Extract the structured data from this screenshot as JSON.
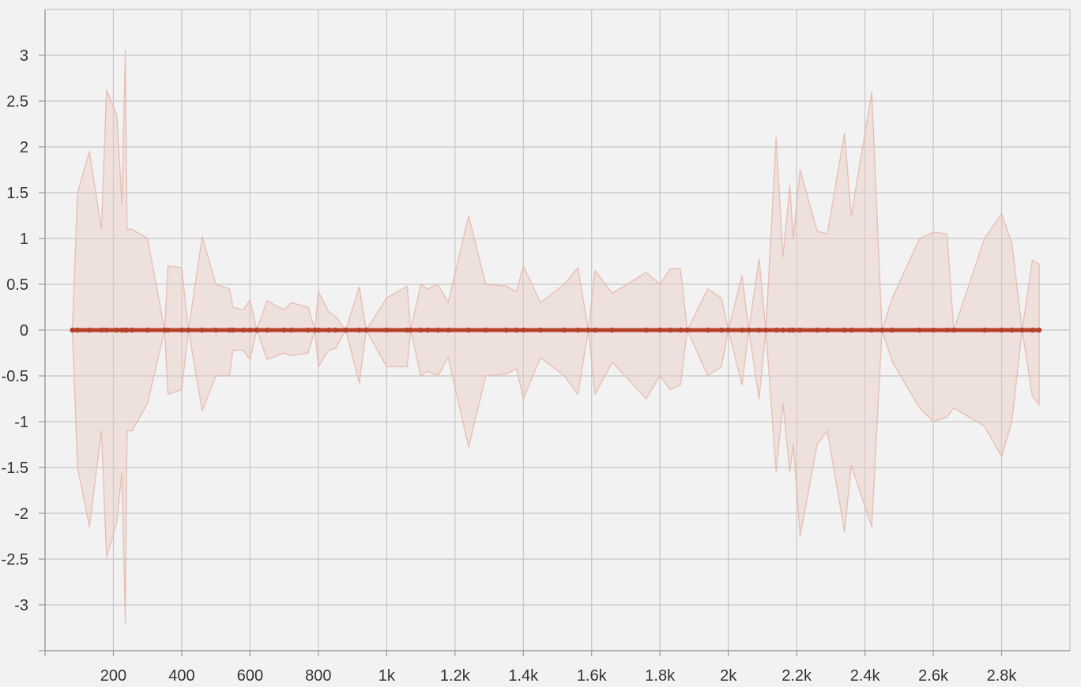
{
  "chart_data": {
    "type": "area",
    "title": "",
    "xlabel": "",
    "ylabel": "",
    "xlim": [
      0,
      3000
    ],
    "ylim": [
      -3.5,
      3.5
    ],
    "grid": true,
    "legend": "none",
    "x_ticks": [
      {
        "value": 200,
        "label": "200"
      },
      {
        "value": 400,
        "label": "400"
      },
      {
        "value": 600,
        "label": "600"
      },
      {
        "value": 800,
        "label": "800"
      },
      {
        "value": 1000,
        "label": "1k"
      },
      {
        "value": 1200,
        "label": "1.2k"
      },
      {
        "value": 1400,
        "label": "1.4k"
      },
      {
        "value": 1600,
        "label": "1.6k"
      },
      {
        "value": 1800,
        "label": "1.8k"
      },
      {
        "value": 2000,
        "label": "2k"
      },
      {
        "value": 2200,
        "label": "2.2k"
      },
      {
        "value": 2400,
        "label": "2.4k"
      },
      {
        "value": 2600,
        "label": "2.6k"
      },
      {
        "value": 2800,
        "label": "2.8k"
      }
    ],
    "y_ticks": [
      {
        "value": 3,
        "label": "3"
      },
      {
        "value": 2.5,
        "label": "2.5"
      },
      {
        "value": 2,
        "label": "2"
      },
      {
        "value": 1.5,
        "label": "1.5"
      },
      {
        "value": 1,
        "label": "1"
      },
      {
        "value": 0.5,
        "label": "0.5"
      },
      {
        "value": 0,
        "label": "0"
      },
      {
        "value": -0.5,
        "label": "-0.5"
      },
      {
        "value": -1,
        "label": "-1"
      },
      {
        "value": -1.5,
        "label": "-1.5"
      },
      {
        "value": -2,
        "label": "-2"
      },
      {
        "value": -2.5,
        "label": "-2.5"
      },
      {
        "value": -3,
        "label": "-3"
      }
    ],
    "colors": {
      "line": "#b5402a",
      "band_fill": "#e8c9c1",
      "band_stroke": "#e3b6ab"
    },
    "series": [
      {
        "x": [
          80,
          95,
          130,
          165,
          180,
          210,
          225,
          235,
          240,
          255,
          300,
          350,
          360,
          400,
          420,
          460,
          500,
          540,
          550,
          580,
          600,
          620,
          650,
          700,
          720,
          770,
          790,
          800,
          830,
          850,
          880,
          920,
          940,
          1000,
          1060,
          1070,
          1100,
          1120,
          1150,
          1180,
          1240,
          1290,
          1350,
          1380,
          1400,
          1450,
          1520,
          1560,
          1590,
          1610,
          1660,
          1760,
          1800,
          1830,
          1860,
          1880,
          1940,
          1980,
          2000,
          2040,
          2060,
          2090,
          2110,
          2140,
          2160,
          2180,
          2190,
          2210,
          2260,
          2290,
          2340,
          2360,
          2420,
          2450,
          2480,
          2560,
          2600,
          2640,
          2660,
          2750,
          2800,
          2830,
          2860,
          2890,
          2910
        ],
        "y": [
          0.0,
          0.0,
          0.0,
          0.0,
          0.0,
          0.0,
          0.0,
          0.0,
          0.0,
          0.0,
          0.0,
          0.0,
          0.0,
          0.0,
          0.0,
          0.0,
          0.0,
          0.0,
          0.0,
          0.0,
          0.0,
          0.0,
          0.0,
          0.0,
          0.0,
          0.0,
          0.0,
          0.0,
          0.0,
          0.0,
          0.0,
          0.0,
          0.0,
          0.0,
          0.0,
          0.0,
          0.0,
          0.0,
          0.0,
          0.0,
          0.0,
          0.0,
          0.0,
          0.0,
          0.0,
          0.0,
          0.0,
          0.0,
          0.0,
          0.0,
          0.0,
          0.0,
          0.0,
          0.0,
          0.0,
          0.0,
          0.0,
          0.0,
          0.0,
          0.0,
          0.0,
          0.0,
          0.0,
          0.0,
          0.0,
          0.0,
          0.0,
          0.0,
          0.0,
          0.0,
          0.0,
          0.0,
          0.0,
          0.0,
          0.0,
          0.0,
          0.0,
          0.0,
          0.0,
          0.0,
          0.0,
          0.0,
          0.0,
          0.0,
          0.0
        ],
        "upper": [
          0.0,
          1.5,
          1.95,
          1.1,
          2.62,
          2.35,
          1.38,
          3.05,
          1.1,
          1.1,
          1.0,
          0.0,
          0.7,
          0.68,
          0.0,
          1.02,
          0.5,
          0.45,
          0.25,
          0.22,
          0.33,
          0.0,
          0.32,
          0.22,
          0.3,
          0.25,
          0.0,
          0.42,
          0.2,
          0.15,
          0.0,
          0.47,
          0.0,
          0.35,
          0.48,
          0.0,
          0.5,
          0.45,
          0.5,
          0.3,
          1.25,
          0.5,
          0.48,
          0.42,
          0.7,
          0.3,
          0.5,
          0.68,
          0.0,
          0.65,
          0.4,
          0.63,
          0.5,
          0.67,
          0.67,
          0.0,
          0.45,
          0.35,
          0.0,
          0.6,
          0.0,
          0.78,
          0.0,
          2.1,
          0.8,
          1.58,
          1.0,
          1.75,
          1.08,
          1.05,
          2.15,
          1.25,
          2.6,
          0.0,
          0.35,
          1.0,
          1.07,
          1.05,
          0.0,
          1.0,
          1.27,
          0.95,
          0.0,
          0.76,
          0.72
        ],
        "lower": [
          0.0,
          -1.5,
          -2.15,
          -1.1,
          -2.48,
          -2.1,
          -1.55,
          -3.2,
          -1.1,
          -1.1,
          -0.8,
          0.0,
          -0.7,
          -0.65,
          0.0,
          -0.88,
          -0.5,
          -0.5,
          -0.22,
          -0.22,
          -0.32,
          0.0,
          -0.32,
          -0.25,
          -0.28,
          -0.25,
          0.0,
          -0.4,
          -0.22,
          -0.2,
          0.0,
          -0.58,
          0.0,
          -0.4,
          -0.4,
          0.0,
          -0.5,
          -0.45,
          -0.5,
          -0.3,
          -1.28,
          -0.5,
          -0.48,
          -0.42,
          -0.75,
          -0.3,
          -0.5,
          -0.7,
          0.0,
          -0.7,
          -0.35,
          -0.75,
          -0.5,
          -0.65,
          -0.6,
          0.0,
          -0.5,
          -0.4,
          0.0,
          -0.6,
          0.0,
          -0.75,
          0.0,
          -1.55,
          -0.8,
          -1.55,
          -1.25,
          -2.25,
          -1.25,
          -1.1,
          -2.2,
          -1.48,
          -2.15,
          0.0,
          -0.35,
          -0.85,
          -1.0,
          -0.95,
          -0.85,
          -1.05,
          -1.38,
          -1.0,
          0.0,
          -0.72,
          -0.82
        ]
      }
    ]
  }
}
